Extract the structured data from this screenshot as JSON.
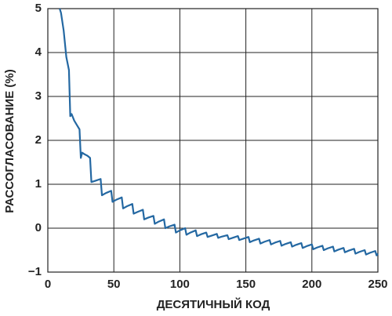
{
  "chart_data": {
    "type": "line",
    "xlabel": "ДЕСЯТИЧНЫЙ КОД",
    "ylabel": "РАССОГЛАСОВАНИЕ (%)",
    "xlim": [
      0,
      250
    ],
    "xticks": [
      0,
      50,
      100,
      150,
      200,
      250
    ],
    "ylim": [
      -1,
      5
    ],
    "yticks": [
      {
        "value": -1,
        "label": "−1"
      },
      0,
      1,
      2,
      3,
      4,
      5
    ],
    "grid": true,
    "color": "#2468a2",
    "x": [
      9,
      10,
      12,
      14,
      16,
      17,
      18,
      20,
      22,
      24,
      25,
      26,
      28,
      30,
      32,
      33,
      36,
      40,
      41,
      44,
      48,
      49,
      52,
      56,
      57,
      60,
      64,
      65,
      68,
      72,
      73,
      76,
      80,
      81,
      84,
      88,
      89,
      92,
      96,
      97,
      100,
      104,
      105,
      108,
      112,
      113,
      116,
      120,
      121,
      124,
      128,
      129,
      132,
      136,
      137,
      140,
      144,
      145,
      148,
      152,
      153,
      156,
      160,
      161,
      164,
      168,
      169,
      172,
      176,
      177,
      180,
      184,
      185,
      188,
      192,
      193,
      196,
      200,
      201,
      204,
      208,
      209,
      212,
      216,
      217,
      220,
      224,
      225,
      228,
      232,
      233,
      236,
      240,
      241,
      244,
      248,
      249,
      250
    ],
    "values": [
      5.0,
      4.9,
      4.5,
      3.9,
      3.6,
      2.55,
      2.6,
      2.45,
      2.35,
      2.25,
      1.6,
      1.72,
      1.68,
      1.65,
      1.6,
      1.05,
      1.08,
      1.12,
      0.75,
      0.8,
      0.85,
      0.6,
      0.65,
      0.7,
      0.45,
      0.5,
      0.55,
      0.33,
      0.37,
      0.42,
      0.2,
      0.24,
      0.28,
      0.1,
      0.15,
      0.2,
      0.0,
      0.04,
      0.08,
      -0.1,
      -0.05,
      0.0,
      -0.15,
      -0.1,
      -0.05,
      -0.18,
      -0.14,
      -0.1,
      -0.2,
      -0.17,
      -0.13,
      -0.22,
      -0.19,
      -0.16,
      -0.25,
      -0.22,
      -0.18,
      -0.27,
      -0.24,
      -0.2,
      -0.32,
      -0.28,
      -0.24,
      -0.35,
      -0.31,
      -0.27,
      -0.37,
      -0.33,
      -0.29,
      -0.4,
      -0.36,
      -0.32,
      -0.42,
      -0.38,
      -0.34,
      -0.45,
      -0.41,
      -0.37,
      -0.48,
      -0.44,
      -0.4,
      -0.5,
      -0.46,
      -0.42,
      -0.53,
      -0.49,
      -0.45,
      -0.55,
      -0.51,
      -0.47,
      -0.58,
      -0.54,
      -0.5,
      -0.6,
      -0.56,
      -0.52,
      -0.62,
      -0.58
    ]
  }
}
